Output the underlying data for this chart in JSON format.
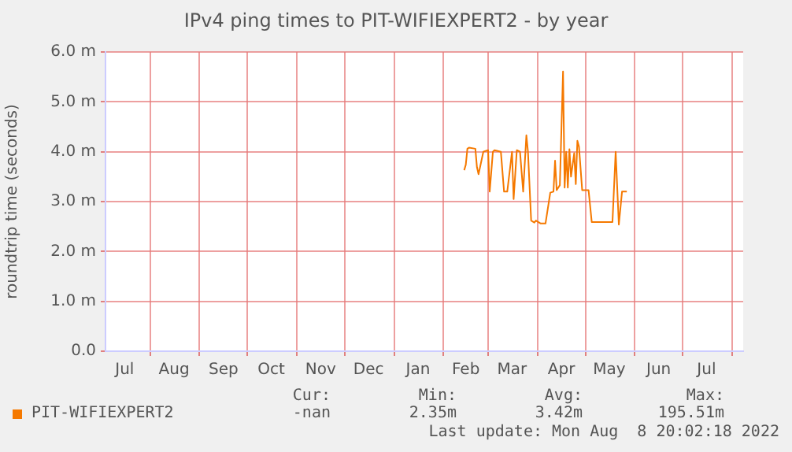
{
  "chart_data": {
    "type": "line",
    "title": "IPv4 ping times to PIT-WIFIEXPERT2 - by year",
    "ylabel": "roundtrip time (seconds)",
    "x": [
      "2022-02-14",
      "2022-02-15",
      "2022-02-16",
      "2022-02-17",
      "2022-02-21",
      "2022-02-22",
      "2022-02-23",
      "2022-02-26",
      "2022-03-01",
      "2022-03-02",
      "2022-03-04",
      "2022-03-05",
      "2022-03-09",
      "2022-03-11",
      "2022-03-13",
      "2022-03-16",
      "2022-03-17",
      "2022-03-19",
      "2022-03-21",
      "2022-03-23",
      "2022-03-25",
      "2022-03-26",
      "2022-03-28",
      "2022-03-30",
      "2022-03-31",
      "2022-04-03",
      "2022-04-06",
      "2022-04-09",
      "2022-04-11",
      "2022-04-12",
      "2022-04-13",
      "2022-04-15",
      "2022-04-17",
      "2022-04-18",
      "2022-04-19",
      "2022-04-20",
      "2022-04-21",
      "2022-04-22",
      "2022-04-24",
      "2022-04-25",
      "2022-04-26",
      "2022-04-27",
      "2022-04-29",
      "2022-05-03",
      "2022-05-05",
      "2022-05-18",
      "2022-05-20",
      "2022-05-22",
      "2022-05-24",
      "2022-05-27"
    ],
    "series": [
      {
        "name": "PIT-WIFIEXPERT2",
        "color": "#f57900",
        "values": [
          3.63,
          3.74,
          4.06,
          4.08,
          4.06,
          3.69,
          3.55,
          4.0,
          4.03,
          3.2,
          4.0,
          4.03,
          4.0,
          3.2,
          3.2,
          4.0,
          3.05,
          4.03,
          4.0,
          3.2,
          4.33,
          4.0,
          2.62,
          2.58,
          2.62,
          2.56,
          2.56,
          3.18,
          3.2,
          3.82,
          3.23,
          3.33,
          5.61,
          3.28,
          4.0,
          3.28,
          4.05,
          3.5,
          3.97,
          3.35,
          4.22,
          4.1,
          3.23,
          3.23,
          2.59,
          2.59,
          4.0,
          2.54,
          3.2,
          3.2
        ]
      }
    ],
    "xlim": [
      "2021-07-04",
      "2022-08-08"
    ],
    "xticks": [
      {
        "value": "2021-07-16",
        "label": "Jul"
      },
      {
        "value": "2021-08-01",
        "label": null
      },
      {
        "value": "2021-08-16",
        "label": "Aug"
      },
      {
        "value": "2021-09-01",
        "label": null
      },
      {
        "value": "2021-09-16",
        "label": "Sep"
      },
      {
        "value": "2021-10-01",
        "label": null
      },
      {
        "value": "2021-10-16",
        "label": "Oct"
      },
      {
        "value": "2021-11-01",
        "label": null
      },
      {
        "value": "2021-11-16",
        "label": "Nov"
      },
      {
        "value": "2021-12-01",
        "label": null
      },
      {
        "value": "2021-12-16",
        "label": "Dec"
      },
      {
        "value": "2022-01-01",
        "label": null
      },
      {
        "value": "2022-01-16",
        "label": "Jan"
      },
      {
        "value": "2022-02-01",
        "label": null
      },
      {
        "value": "2022-02-15",
        "label": "Feb"
      },
      {
        "value": "2022-03-01",
        "label": null
      },
      {
        "value": "2022-03-16",
        "label": "Mar"
      },
      {
        "value": "2022-04-01",
        "label": null
      },
      {
        "value": "2022-04-16",
        "label": "Apr"
      },
      {
        "value": "2022-05-01",
        "label": null
      },
      {
        "value": "2022-05-16",
        "label": "May"
      },
      {
        "value": "2022-06-01",
        "label": null
      },
      {
        "value": "2022-06-16",
        "label": "Jun"
      },
      {
        "value": "2022-07-01",
        "label": null
      },
      {
        "value": "2022-07-16",
        "label": "Jul"
      },
      {
        "value": "2022-08-01",
        "label": null
      }
    ],
    "ylim": [
      0,
      6
    ],
    "yticks": [
      {
        "value": 0,
        "label": "0.0"
      },
      {
        "value": 1,
        "label": "1.0 m"
      },
      {
        "value": 2,
        "label": "2.0 m"
      },
      {
        "value": 3,
        "label": "3.0 m"
      },
      {
        "value": 4,
        "label": "4.0 m"
      },
      {
        "value": 5,
        "label": "5.0 m"
      },
      {
        "value": 6,
        "label": "6.0 m"
      }
    ],
    "grid": true,
    "legend": "bottom",
    "marker": "none",
    "line_style": "solid",
    "annotations": [
      "Cur:",
      "Min:",
      "Avg:",
      "Max:",
      "-nan",
      "2.35m",
      "3.42m",
      "195.51m",
      "Last update: Mon Aug  8 20:02:18 2022"
    ]
  }
}
